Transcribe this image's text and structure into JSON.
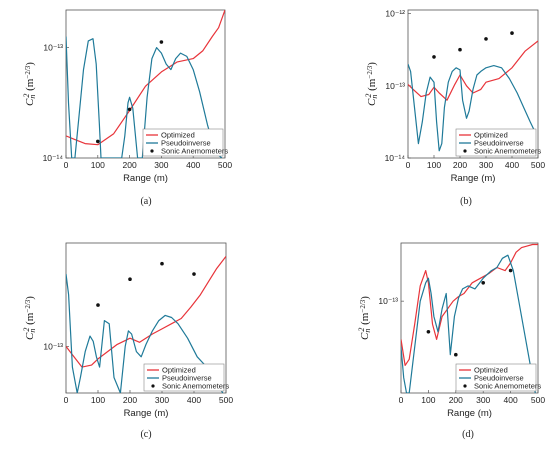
{
  "colors": {
    "optimized": "#e8343a",
    "pseudoinverse": "#1f7a99",
    "sonic": "#111111"
  },
  "legend": [
    "Optimized",
    "Pseudoinverse",
    "Sonic Anemometers"
  ],
  "ylabel_base": "C",
  "ylabel_sub": "n",
  "ylabel_sup": "2",
  "ylabel_units": "(m",
  "ylabel_exp": "−2/3",
  "ylabel_close": ")",
  "chart_data": [
    {
      "type": "line",
      "caption": "(a)",
      "xlabel": "Range (m)",
      "xticks": [
        0,
        100,
        200,
        300,
        400,
        500
      ],
      "xlim": [
        0,
        500
      ],
      "ylog": true,
      "ylim_exp": [
        -14,
        -12.66
      ],
      "yticks": [
        {
          "exp": -14,
          "label": "10⁻¹⁴"
        },
        {
          "exp": -13,
          "label": "10⁻¹³"
        }
      ],
      "series": [
        {
          "name": "Optimized",
          "x": [
            0,
            25,
            60,
            100,
            150,
            200,
            250,
            300,
            350,
            400,
            430,
            460,
            480,
            500
          ],
          "y_exp": [
            -13.8,
            -13.83,
            -13.87,
            -13.88,
            -13.78,
            -13.57,
            -13.35,
            -13.22,
            -13.13,
            -13.1,
            -13.03,
            -12.9,
            -12.82,
            -12.66
          ]
        },
        {
          "name": "Pseudoinverse",
          "x": [
            0,
            8,
            18,
            28,
            40,
            55,
            70,
            85,
            95,
            105,
            110,
            115,
            125,
            135,
            145,
            160,
            175,
            185,
            195,
            200,
            210,
            225,
            240,
            255,
            270,
            285,
            300,
            315,
            330,
            345,
            360,
            380,
            400,
            420,
            445,
            470,
            490
          ],
          "y_exp": [
            -12.9,
            -13.5,
            -14.0,
            -14.0,
            -13.65,
            -13.2,
            -12.94,
            -12.92,
            -13.15,
            -13.7,
            -14.0,
            -14.0,
            -14.0,
            -14.0,
            -14.0,
            -14.0,
            -14.0,
            -13.8,
            -13.5,
            -13.45,
            -13.55,
            -14.0,
            -14.0,
            -13.45,
            -13.1,
            -13.0,
            -13.05,
            -13.15,
            -13.2,
            -13.1,
            -13.05,
            -13.08,
            -13.2,
            -13.4,
            -13.7,
            -13.95,
            -14.0
          ]
        },
        {
          "name": "Sonic Anemometers",
          "x": [
            100,
            200,
            300
          ],
          "y_exp": [
            -13.85,
            -13.56,
            -12.95
          ]
        }
      ]
    },
    {
      "type": "line",
      "caption": "(b)",
      "xlabel": "Range (m)",
      "xticks": [
        0,
        100,
        200,
        300,
        400,
        500
      ],
      "xlim": [
        0,
        500
      ],
      "ylog": true,
      "ylim_exp": [
        -14,
        -11.95
      ],
      "yticks": [
        {
          "exp": -14,
          "label": "10⁻¹⁴"
        },
        {
          "exp": -13,
          "label": "10⁻¹³"
        },
        {
          "exp": -12,
          "label": "10⁻¹²"
        }
      ],
      "series": [
        {
          "name": "Optimized",
          "x": [
            0,
            20,
            50,
            80,
            100,
            120,
            150,
            180,
            200,
            225,
            250,
            280,
            300,
            350,
            400,
            450,
            500
          ],
          "y_exp": [
            -12.98,
            -13.05,
            -13.15,
            -13.12,
            -13.02,
            -13.1,
            -13.2,
            -12.98,
            -12.85,
            -13.0,
            -13.1,
            -13.05,
            -12.95,
            -12.9,
            -12.75,
            -12.52,
            -12.38
          ]
        },
        {
          "name": "Pseudoinverse",
          "x": [
            0,
            10,
            25,
            40,
            55,
            70,
            85,
            100,
            110,
            120,
            130,
            140,
            155,
            170,
            185,
            200,
            210,
            225,
            235,
            250,
            265,
            280,
            300,
            330,
            360,
            390,
            420,
            445,
            470,
            490
          ],
          "y_exp": [
            -12.7,
            -12.8,
            -13.3,
            -13.8,
            -13.5,
            -13.1,
            -12.88,
            -12.95,
            -13.5,
            -13.9,
            -13.8,
            -13.3,
            -12.95,
            -12.8,
            -12.75,
            -12.78,
            -13.2,
            -13.45,
            -13.35,
            -13.05,
            -12.85,
            -12.8,
            -12.75,
            -12.72,
            -12.75,
            -12.9,
            -13.1,
            -13.3,
            -13.5,
            -13.65
          ]
        },
        {
          "name": "Sonic Anemometers",
          "x": [
            100,
            200,
            300,
            400
          ],
          "y_exp": [
            -12.6,
            -12.5,
            -12.35,
            -12.27
          ]
        }
      ]
    },
    {
      "type": "line",
      "caption": "(c)",
      "xlabel": "Range (m)",
      "xticks": [
        0,
        100,
        200,
        300,
        400,
        500
      ],
      "xlim": [
        0,
        500
      ],
      "ylog": true,
      "ylim_exp": [
        -13.45,
        -12.0
      ],
      "yticks": [
        {
          "exp": -13,
          "label": "10⁻¹³"
        }
      ],
      "series": [
        {
          "name": "Optimized",
          "x": [
            0,
            20,
            50,
            80,
            100,
            130,
            160,
            200,
            230,
            270,
            300,
            330,
            360,
            390,
            420,
            450,
            470,
            500
          ],
          "y_exp": [
            -13.0,
            -13.08,
            -13.2,
            -13.18,
            -13.12,
            -13.05,
            -12.98,
            -12.92,
            -12.96,
            -12.88,
            -12.83,
            -12.78,
            -12.73,
            -12.62,
            -12.5,
            -12.35,
            -12.25,
            -12.13
          ]
        },
        {
          "name": "Pseudoinverse",
          "x": [
            0,
            8,
            20,
            35,
            45,
            60,
            75,
            85,
            95,
            105,
            120,
            135,
            150,
            170,
            185,
            195,
            205,
            220,
            235,
            250,
            270,
            290,
            310,
            330,
            350,
            380,
            410,
            440,
            470,
            490
          ],
          "y_exp": [
            -12.3,
            -12.5,
            -13.2,
            -13.45,
            -13.3,
            -13.05,
            -12.9,
            -12.95,
            -13.1,
            -13.2,
            -12.75,
            -12.78,
            -13.3,
            -13.45,
            -13.0,
            -12.85,
            -12.88,
            -13.05,
            -13.1,
            -12.98,
            -12.85,
            -12.75,
            -12.7,
            -12.72,
            -12.78,
            -12.92,
            -13.1,
            -13.2,
            -13.35,
            -13.45
          ]
        },
        {
          "name": "Sonic Anemometers",
          "x": [
            100,
            200,
            300,
            400
          ],
          "y_exp": [
            -12.6,
            -12.35,
            -12.2,
            -12.3
          ]
        }
      ]
    },
    {
      "type": "line",
      "caption": "(d)",
      "xlabel": "Range (m)",
      "xticks": [
        0,
        100,
        200,
        300,
        400,
        500
      ],
      "xlim": [
        0,
        500
      ],
      "ylog": true,
      "ylim_exp": [
        -13.6,
        -12.62
      ],
      "yticks": [
        {
          "exp": -13,
          "label": "10⁻¹³"
        }
      ],
      "series": [
        {
          "name": "Optimized",
          "x": [
            0,
            15,
            30,
            50,
            70,
            90,
            100,
            115,
            130,
            150,
            170,
            190,
            210,
            230,
            260,
            290,
            320,
            350,
            380,
            400,
            420,
            440,
            460,
            480,
            500
          ],
          "y_exp": [
            -13.25,
            -13.42,
            -13.38,
            -13.15,
            -12.9,
            -12.8,
            -12.88,
            -13.15,
            -13.25,
            -13.1,
            -13.05,
            -13.0,
            -12.97,
            -12.95,
            -12.88,
            -12.85,
            -12.82,
            -12.78,
            -12.8,
            -12.75,
            -12.68,
            -12.65,
            -12.64,
            -12.63,
            -12.63
          ]
        },
        {
          "name": "Pseudoinverse",
          "x": [
            0,
            10,
            20,
            30,
            50,
            70,
            90,
            100,
            110,
            120,
            135,
            150,
            165,
            180,
            195,
            210,
            225,
            245,
            270,
            300,
            330,
            350,
            370,
            390,
            410,
            430,
            450,
            470,
            490
          ],
          "y_exp": [
            -13.3,
            -13.5,
            -13.6,
            -13.6,
            -13.3,
            -13.0,
            -12.88,
            -12.85,
            -12.95,
            -13.1,
            -13.2,
            -13.05,
            -12.95,
            -13.35,
            -13.1,
            -12.98,
            -12.92,
            -12.9,
            -12.92,
            -12.85,
            -12.8,
            -12.78,
            -12.72,
            -12.7,
            -12.8,
            -13.0,
            -13.2,
            -13.4,
            -13.6
          ]
        },
        {
          "name": "Sonic Anemometers",
          "x": [
            100,
            200,
            300,
            400
          ],
          "y_exp": [
            -13.2,
            -13.35,
            -12.88,
            -12.8
          ]
        }
      ]
    }
  ]
}
